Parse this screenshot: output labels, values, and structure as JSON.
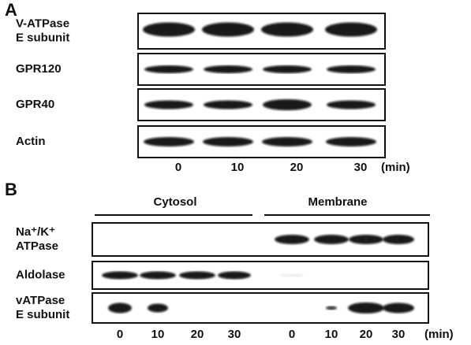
{
  "panel_a": {
    "label": "A",
    "rows": [
      [
        "V-ATPase",
        "E subunit"
      ],
      [
        "GPR120"
      ],
      [
        "GPR40"
      ],
      [
        "Actin"
      ]
    ],
    "lanes": [
      "0",
      "10",
      "20",
      "30"
    ],
    "unit": "(min)"
  },
  "panel_b": {
    "label": "B",
    "groups": [
      "Cytosol",
      "Membrane"
    ],
    "rows": [
      [
        "Na⁺/K⁺",
        "ATPase"
      ],
      [
        "Aldolase"
      ],
      [
        "vATPase",
        "E subunit"
      ]
    ],
    "lanes": [
      "0",
      "10",
      "20",
      "30",
      "0",
      "10",
      "20",
      "30"
    ],
    "unit": "(min)"
  }
}
